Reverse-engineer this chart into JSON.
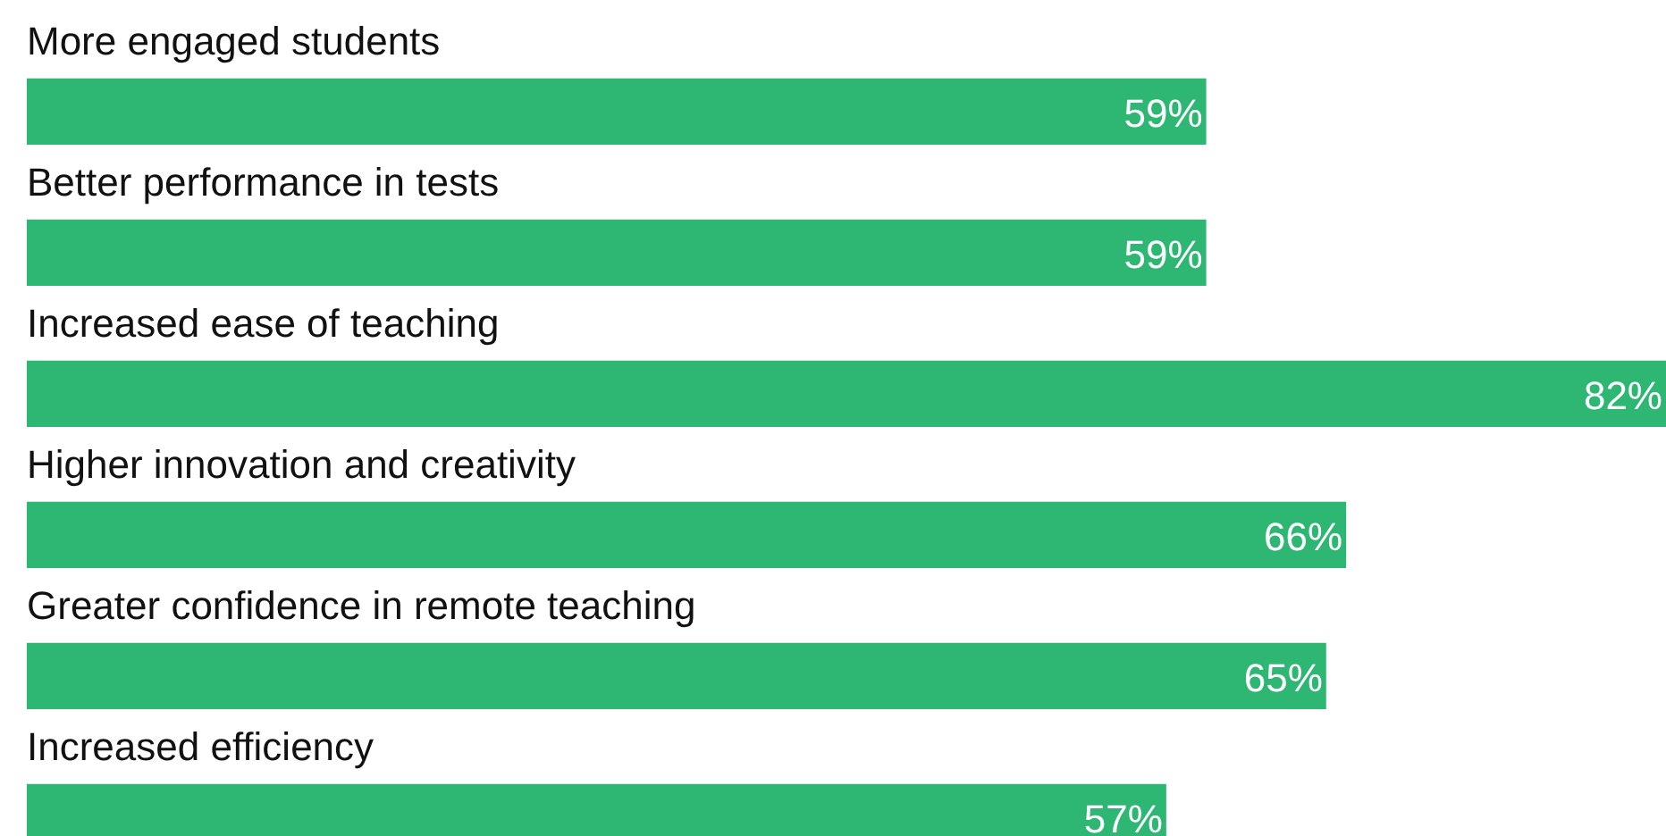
{
  "chart_data": {
    "type": "bar",
    "orientation": "horizontal",
    "relative": false,
    "categories": [
      "More engaged students",
      "Better performance in tests",
      "Increased ease of teaching",
      "Higher innovation and creativity",
      "Greater confidence in remote teaching",
      "Increased efficiency"
    ],
    "values": [
      59,
      59,
      82,
      66,
      65,
      57
    ],
    "value_labels": [
      "59%",
      "59%",
      "82%",
      "66%",
      "65%",
      "57%"
    ],
    "color": "#2eb773"
  }
}
